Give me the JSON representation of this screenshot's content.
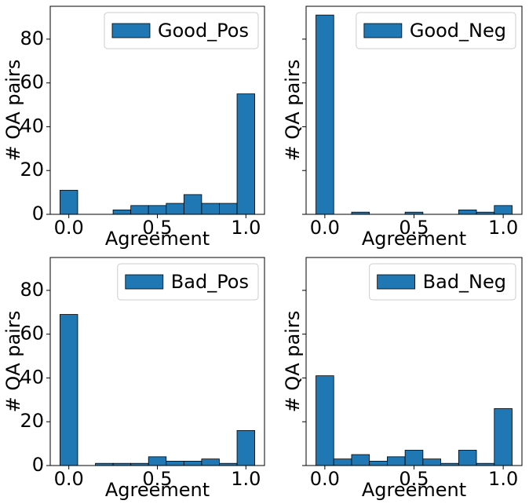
{
  "chart_data": [
    {
      "type": "histogram",
      "name": "Good_Pos",
      "color": "#1f77b4",
      "legend": "upper right",
      "bins": [
        -0.05,
        0.05,
        0.15,
        0.25,
        0.35,
        0.45,
        0.55,
        0.65,
        0.75,
        0.85,
        0.95,
        1.05
      ],
      "values": [
        11,
        0,
        0,
        2,
        4,
        4,
        5,
        9,
        5,
        5,
        55
      ],
      "xlabel": "Agreement",
      "ylabel": "# QA pairs",
      "xlim": [
        -0.105,
        1.105
      ],
      "xticks": [
        {
          "value": 0,
          "label": "0.0"
        },
        {
          "value": 0.5,
          "label": "0.5"
        },
        {
          "value": 1,
          "label": "1.0"
        }
      ],
      "ylim": [
        0,
        95
      ],
      "yticks": [
        0,
        20,
        40,
        60,
        80
      ]
    },
    {
      "type": "histogram",
      "name": "Good_Neg",
      "color": "#1f77b4",
      "legend": "upper right",
      "sharey": true,
      "bins": [
        -0.05,
        0.05,
        0.15,
        0.25,
        0.35,
        0.45,
        0.55,
        0.65,
        0.75,
        0.85,
        0.95,
        1.05
      ],
      "values": [
        91,
        0,
        1,
        0,
        0,
        1,
        0,
        0,
        2,
        1,
        4
      ],
      "xlabel": "Agreement",
      "ylabel": "# QA pairs",
      "xlim": [
        -0.105,
        1.105
      ],
      "xticks": [
        {
          "value": 0,
          "label": "0.0"
        },
        {
          "value": 0.5,
          "label": "0.5"
        },
        {
          "value": 1,
          "label": "1.0"
        }
      ],
      "ylim": [
        0,
        95
      ],
      "yticks": [
        0,
        20,
        40,
        60,
        80
      ]
    },
    {
      "type": "histogram",
      "name": "Bad_Pos",
      "color": "#1f77b4",
      "legend": "upper right",
      "bins": [
        -0.05,
        0.05,
        0.15,
        0.25,
        0.35,
        0.45,
        0.55,
        0.65,
        0.75,
        0.85,
        0.95,
        1.05
      ],
      "values": [
        69,
        0,
        1,
        1,
        1,
        4,
        2,
        2,
        3,
        1,
        16
      ],
      "xlabel": "Agreement",
      "ylabel": "# QA pairs",
      "xlim": [
        -0.105,
        1.105
      ],
      "xticks": [
        {
          "value": 0,
          "label": "0.0"
        },
        {
          "value": 0.5,
          "label": "0.5"
        },
        {
          "value": 1,
          "label": "1.0"
        }
      ],
      "ylim": [
        0,
        95
      ],
      "yticks": [
        0,
        20,
        40,
        60,
        80
      ]
    },
    {
      "type": "histogram",
      "name": "Bad_Neg",
      "color": "#1f77b4",
      "legend": "upper right",
      "sharey": true,
      "bins": [
        -0.05,
        0.05,
        0.15,
        0.25,
        0.35,
        0.45,
        0.55,
        0.65,
        0.75,
        0.85,
        0.95,
        1.05
      ],
      "values": [
        41,
        3,
        5,
        2,
        4,
        7,
        3,
        1,
        7,
        1,
        26
      ],
      "xlabel": "Agreement",
      "ylabel": "# QA pairs",
      "xlim": [
        -0.105,
        1.105
      ],
      "xticks": [
        {
          "value": 0,
          "label": "0.0"
        },
        {
          "value": 0.5,
          "label": "0.5"
        },
        {
          "value": 1,
          "label": "1.0"
        }
      ],
      "ylim": [
        0,
        95
      ],
      "yticks": [
        0,
        20,
        40,
        60,
        80
      ]
    }
  ]
}
